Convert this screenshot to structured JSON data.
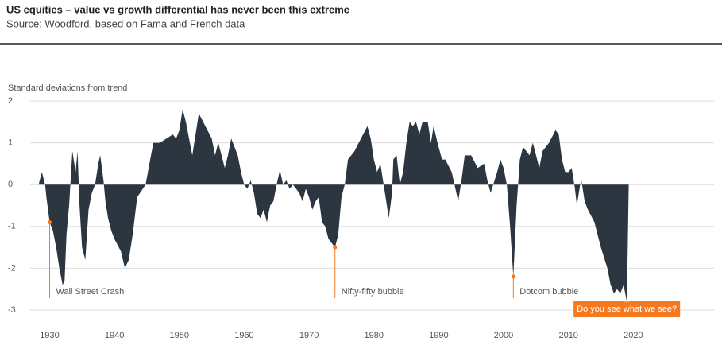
{
  "chart_data": {
    "type": "area",
    "title": "US equities – value vs growth differential has never been this extreme",
    "subtitle": "Source: Woodford, based on Fama and French data",
    "y_label": "Standard deviations from trend",
    "color": "#2b3640",
    "annotation_color": "#f47920",
    "grid": true,
    "xlim": [
      1927,
      2030
    ],
    "ylim": [
      -3,
      2
    ],
    "xticks": [
      1930,
      1940,
      1950,
      1960,
      1970,
      1980,
      1990,
      2000,
      2010,
      2020
    ],
    "yticks": [
      2,
      1,
      0,
      -1,
      -2,
      -3
    ],
    "annotations": [
      {
        "text": "Wall Street Crash",
        "x": 1930,
        "y": -0.9
      },
      {
        "text": "Nifty-fifty bubble",
        "x": 1974,
        "y": -1.5
      },
      {
        "text": "Dotcom bubble",
        "x": 2001.5,
        "y": -2.2
      },
      {
        "text": "Do you see what we see?",
        "x": 2019,
        "y": -2.8
      }
    ],
    "x": [
      1928.3,
      1928.8,
      1929.3,
      1929.5,
      1930,
      1930.5,
      1931,
      1931.5,
      1932,
      1932.3,
      1932.6,
      1933,
      1933.5,
      1934,
      1934.3,
      1934.6,
      1935,
      1935.5,
      1936,
      1936.5,
      1937,
      1937.5,
      1937.8,
      1938.3,
      1938.6,
      1939,
      1939.5,
      1940,
      1941,
      1941.6,
      1942.2,
      1942.8,
      1943.5,
      1944.8,
      1945.5,
      1946,
      1947,
      1948,
      1949,
      1949.5,
      1950,
      1950.5,
      1951,
      1951.5,
      1952,
      1952.5,
      1953,
      1954,
      1955,
      1955.5,
      1956,
      1956.5,
      1957,
      1957.5,
      1958,
      1959,
      1959.5,
      1960,
      1960.5,
      1961,
      1961.5,
      1962,
      1962.5,
      1963,
      1963.5,
      1964,
      1964.5,
      1965,
      1965.5,
      1966,
      1966.5,
      1967,
      1967.5,
      1968,
      1968.5,
      1969,
      1969.5,
      1970,
      1970.5,
      1971,
      1971.5,
      1972,
      1972.5,
      1973,
      1974,
      1974.5,
      1975,
      1975.5,
      1976,
      1977,
      1978,
      1979,
      1979.5,
      1980,
      1980.5,
      1981,
      1981.5,
      1982.3,
      1982.8,
      1983,
      1983.5,
      1984,
      1984.5,
      1985,
      1985.5,
      1986,
      1986.5,
      1987,
      1987.5,
      1988.3,
      1988.8,
      1989.2,
      1989.8,
      1990.5,
      1991,
      1992,
      1993,
      1993.5,
      1994,
      1995,
      1996,
      1997,
      1997.5,
      1998,
      1999,
      1999.5,
      2000,
      2000.5,
      2001,
      2001.5,
      2002,
      2002.5,
      2003,
      2004,
      2004.5,
      2005,
      2005.5,
      2006,
      2007,
      2008,
      2008.5,
      2009,
      2009.5,
      2010,
      2010.5,
      2011,
      2011.3,
      2011.8,
      2012,
      2012.5,
      2013,
      2014,
      2014.5,
      2015,
      2016,
      2016.5,
      2017,
      2017.5,
      2018,
      2018.5,
      2019,
      2019.3
    ],
    "values": [
      0,
      0.3,
      0,
      -0.3,
      -0.9,
      -1.1,
      -1.5,
      -2.0,
      -2.4,
      -2.3,
      -1.2,
      -0.5,
      0.8,
      0.3,
      0.8,
      -0.5,
      -1.5,
      -1.8,
      -0.6,
      -0.2,
      0,
      0.5,
      0.7,
      0.1,
      -0.4,
      -0.8,
      -1.1,
      -1.3,
      -1.6,
      -2.0,
      -1.8,
      -1.2,
      -0.3,
      0,
      0.6,
      1.0,
      1.0,
      1.1,
      1.2,
      1.1,
      1.3,
      1.8,
      1.5,
      1.1,
      0.7,
      1.2,
      1.7,
      1.4,
      1.1,
      0.7,
      1.0,
      0.7,
      0.4,
      0.7,
      1.1,
      0.7,
      0.3,
      0,
      -0.1,
      0.1,
      -0.2,
      -0.7,
      -0.8,
      -0.6,
      -0.9,
      -0.5,
      -0.4,
      0,
      0.35,
      0,
      0.1,
      -0.1,
      0,
      -0.1,
      -0.2,
      -0.4,
      -0.1,
      -0.3,
      -0.6,
      -0.4,
      -0.3,
      -0.9,
      -1.0,
      -1.3,
      -1.5,
      -1.2,
      -0.3,
      0,
      0.6,
      0.8,
      1.1,
      1.4,
      1.1,
      0.6,
      0.3,
      0.5,
      0,
      -0.8,
      -0.2,
      0.6,
      0.7,
      0,
      0.3,
      1.0,
      1.5,
      1.4,
      1.5,
      1.2,
      1.5,
      1.5,
      1.0,
      1.4,
      1.0,
      0.6,
      0.6,
      0.3,
      -0.4,
      0.1,
      0.7,
      0.7,
      0.4,
      0.5,
      0.1,
      -0.2,
      0.3,
      0.6,
      0.4,
      0,
      -1.0,
      -2.2,
      -0.5,
      0.6,
      0.9,
      0.7,
      1.0,
      0.7,
      0.4,
      0.8,
      1.0,
      1.3,
      1.2,
      0.6,
      0.3,
      0.3,
      0.4,
      -0.1,
      -0.5,
      0,
      0.1,
      -0.4,
      -0.6,
      -0.9,
      -1.2,
      -1.5,
      -2.0,
      -2.4,
      -2.6,
      -2.5,
      -2.6,
      -2.4,
      -2.8,
      0
    ]
  }
}
